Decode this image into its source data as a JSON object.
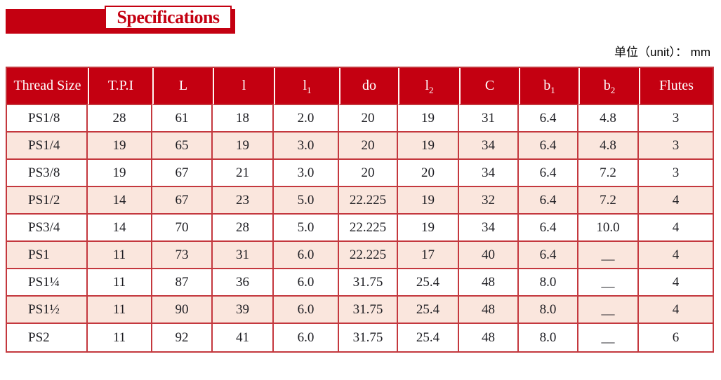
{
  "title": {
    "label": "Specifications"
  },
  "unit_note": {
    "label": "单位（unit）： mm"
  },
  "colors": {
    "accent_red": "#C40011",
    "row_pink": "#FAE6DD",
    "grid_red": "#C4383E",
    "text_dark": "#1D1D22",
    "header_separator": "#FFF6F2"
  },
  "table": {
    "columns": [
      {
        "base": "Thread Size",
        "sub": ""
      },
      {
        "base": "T.P.I",
        "sub": ""
      },
      {
        "base": "L",
        "sub": ""
      },
      {
        "base": "l",
        "sub": ""
      },
      {
        "base": "l",
        "sub": "1"
      },
      {
        "base": "do",
        "sub": ""
      },
      {
        "base": "l",
        "sub": "2"
      },
      {
        "base": "C",
        "sub": ""
      },
      {
        "base": "b",
        "sub": "1"
      },
      {
        "base": "b",
        "sub": "2"
      },
      {
        "base": "Flutes",
        "sub": ""
      }
    ],
    "rows": [
      [
        "PS1/8",
        "28",
        "61",
        "18",
        "2.0",
        "20",
        "19",
        "31",
        "6.4",
        "4.8",
        "3"
      ],
      [
        "PS1/4",
        "19",
        "65",
        "19",
        "3.0",
        "20",
        "19",
        "34",
        "6.4",
        "4.8",
        "3"
      ],
      [
        "PS3/8",
        "19",
        "67",
        "21",
        "3.0",
        "20",
        "20",
        "34",
        "6.4",
        "7.2",
        "3"
      ],
      [
        "PS1/2",
        "14",
        "67",
        "23",
        "5.0",
        "22.225",
        "19",
        "32",
        "6.4",
        "7.2",
        "4"
      ],
      [
        "PS3/4",
        "14",
        "70",
        "28",
        "5.0",
        "22.225",
        "19",
        "34",
        "6.4",
        "10.0",
        "4"
      ],
      [
        "PS1",
        "11",
        "73",
        "31",
        "6.0",
        "22.225",
        "17",
        "40",
        "6.4",
        "__",
        "4"
      ],
      [
        "PS1¼",
        "11",
        "87",
        "36",
        "6.0",
        "31.75",
        "25.4",
        "48",
        "8.0",
        "__",
        "4"
      ],
      [
        "PS1½",
        "11",
        "90",
        "39",
        "6.0",
        "31.75",
        "25.4",
        "48",
        "8.0",
        "__",
        "4"
      ],
      [
        "PS2",
        "11",
        "92",
        "41",
        "6.0",
        "31.75",
        "25.4",
        "48",
        "8.0",
        "__",
        "6"
      ]
    ]
  }
}
